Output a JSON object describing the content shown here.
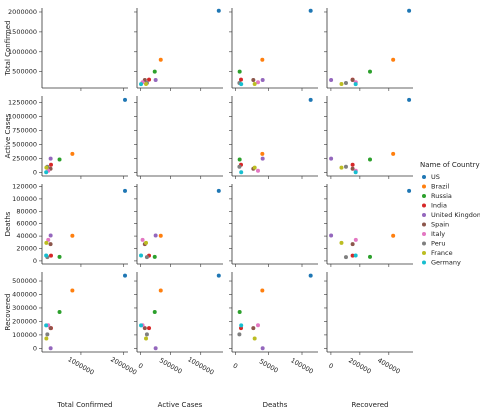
{
  "chart_data": {
    "type": "scatter",
    "legend_title": "Name of Country",
    "legend": "right",
    "variables": [
      {
        "label": "Total Confirmed",
        "lim": [
          90000,
          2100000
        ],
        "yticks": [
          500000,
          1000000,
          1500000,
          2000000
        ],
        "xticks": [
          1000000,
          2000000
        ]
      },
      {
        "label": "Active Cases",
        "lim": [
          -60000,
          1370000
        ],
        "yticks": [
          0,
          250000,
          500000,
          750000,
          1000000,
          1250000
        ],
        "xticks": [
          0,
          500000,
          1000000
        ]
      },
      {
        "label": "Deaths",
        "lim": [
          -5000,
          124000
        ],
        "yticks": [
          0,
          20000,
          40000,
          60000,
          80000,
          100000,
          120000
        ],
        "xticks": [
          0,
          50000,
          100000
        ]
      },
      {
        "label": "Recovered",
        "lim": [
          -27000,
          567000
        ],
        "yticks": [
          0,
          100000,
          200000,
          300000,
          400000,
          500000
        ],
        "xticks": [
          0,
          200000,
          400000
        ]
      }
    ],
    "series": [
      {
        "name": "US",
        "color": "#1f77b4",
        "values": [
          2030000,
          1300000,
          113000,
          540000
        ]
      },
      {
        "name": "Brazil",
        "color": "#ff7f0e",
        "values": [
          800000,
          335000,
          40500,
          430000
        ]
      },
      {
        "name": "Russia",
        "color": "#2ca02c",
        "values": [
          500000,
          235000,
          6500,
          270000
        ]
      },
      {
        "name": "India",
        "color": "#d62728",
        "values": [
          300000,
          140000,
          8500,
          150000
        ]
      },
      {
        "name": "United Kingdom",
        "color": "#9467bd",
        "values": [
          292000,
          250000,
          41000,
          1300
        ]
      },
      {
        "name": "Spain",
        "color": "#8c564b",
        "values": [
          290000,
          70000,
          27000,
          150000
        ]
      },
      {
        "name": "Italy",
        "color": "#e377c2",
        "values": [
          236000,
          33000,
          34000,
          172000
        ]
      },
      {
        "name": "Peru",
        "color": "#7f7f7f",
        "values": [
          215000,
          105000,
          6100,
          104000
        ]
      },
      {
        "name": "France",
        "color": "#bcbd22",
        "values": [
          192000,
          90000,
          29000,
          73000
        ]
      },
      {
        "name": "Germany",
        "color": "#17becf",
        "values": [
          187000,
          7000,
          8800,
          171000
        ]
      }
    ]
  }
}
